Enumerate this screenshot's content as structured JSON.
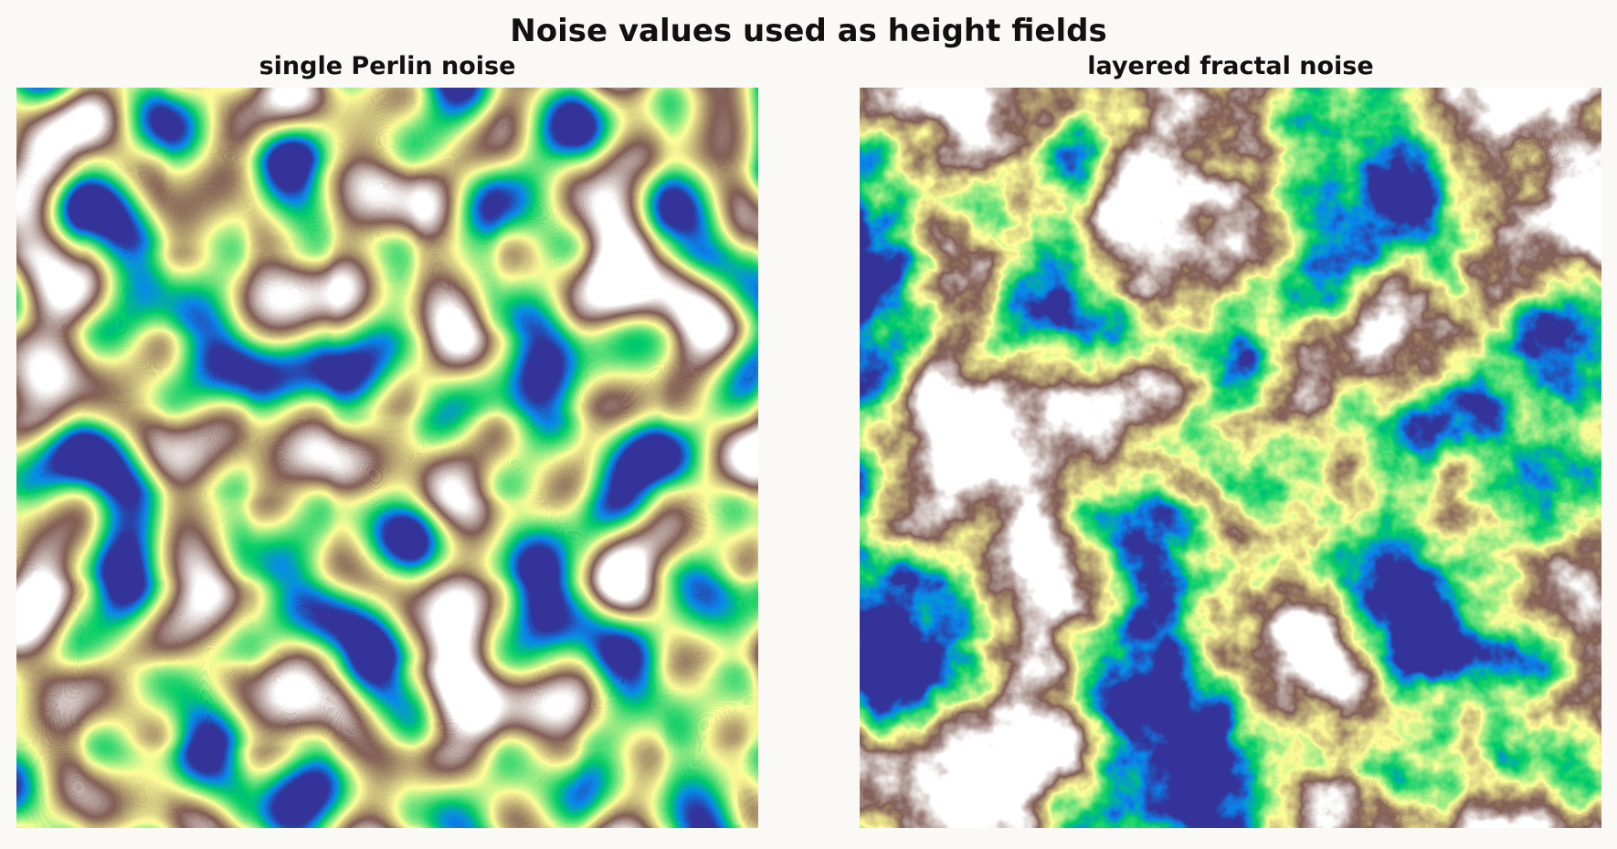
{
  "figure": {
    "title": "Noise values used as height fields",
    "panels": [
      {
        "title": "single Perlin noise"
      },
      {
        "title": "layered fractal noise"
      }
    ]
  }
}
